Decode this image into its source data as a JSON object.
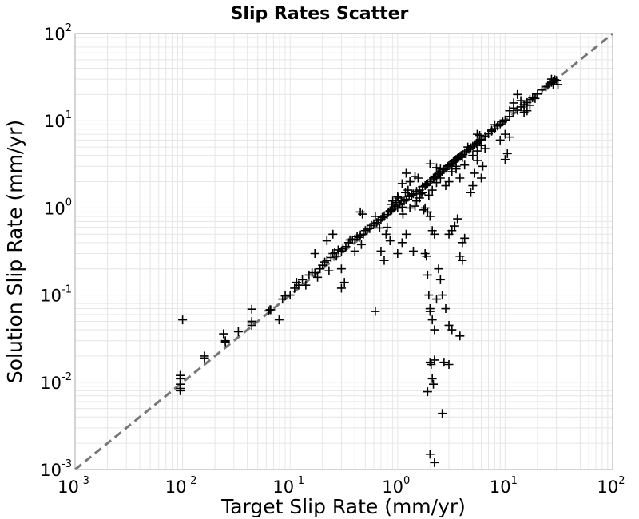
{
  "chart_data": {
    "type": "scatter",
    "title": "Slip Rates Scatter",
    "xlabel": "Target Slip Rate (mm/yr)",
    "ylabel": "Solution Slip Rate (mm/yr)",
    "xscale": "log",
    "yscale": "log",
    "xlim": [
      0.001,
      100
    ],
    "ylim": [
      0.001,
      100
    ],
    "grid": true,
    "legend": "none",
    "marker": "plus",
    "reference_line": {
      "style": "dashed",
      "color": "#777777",
      "from": [
        0.001,
        0.001
      ],
      "to": [
        100,
        100
      ]
    },
    "tick_labels": {
      "x": [
        {
          "base": "10",
          "exp": "-3"
        },
        {
          "base": "10",
          "exp": "-2"
        },
        {
          "base": "10",
          "exp": "-1"
        },
        {
          "base": "10",
          "exp": "0"
        },
        {
          "base": "10",
          "exp": "1"
        },
        {
          "base": "10",
          "exp": "2"
        }
      ],
      "y": [
        {
          "base": "10",
          "exp": "-3"
        },
        {
          "base": "10",
          "exp": "-2"
        },
        {
          "base": "10",
          "exp": "-1"
        },
        {
          "base": "10",
          "exp": "0"
        },
        {
          "base": "10",
          "exp": "1"
        },
        {
          "base": "10",
          "exp": "2"
        }
      ]
    },
    "colors": {
      "marker": "#000000",
      "grid": "#e6e6e6",
      "axis": "#aaaaaa",
      "reference": "#777777"
    },
    "points": [
      [
        0.0095,
        0.011
      ],
      [
        0.0095,
        0.0095
      ],
      [
        0.0095,
        0.0085
      ],
      [
        0.0095,
        0.008
      ],
      [
        0.0095,
        0.012
      ],
      [
        0.01,
        0.052
      ],
      [
        0.016,
        0.02
      ],
      [
        0.016,
        0.019
      ],
      [
        0.025,
        0.029
      ],
      [
        0.025,
        0.03
      ],
      [
        0.024,
        0.036
      ],
      [
        0.033,
        0.038
      ],
      [
        0.044,
        0.045
      ],
      [
        0.044,
        0.05
      ],
      [
        0.044,
        0.048
      ],
      [
        0.044,
        0.069
      ],
      [
        0.063,
        0.066
      ],
      [
        0.065,
        0.068
      ],
      [
        0.066,
        0.068
      ],
      [
        0.079,
        0.052
      ],
      [
        0.085,
        0.09
      ],
      [
        0.09,
        0.098
      ],
      [
        0.1,
        0.1
      ],
      [
        0.11,
        0.12
      ],
      [
        0.115,
        0.14
      ],
      [
        0.12,
        0.13
      ],
      [
        0.13,
        0.15
      ],
      [
        0.14,
        0.13
      ],
      [
        0.15,
        0.17
      ],
      [
        0.16,
        0.18
      ],
      [
        0.17,
        0.18
      ],
      [
        0.17,
        0.3
      ],
      [
        0.18,
        0.16
      ],
      [
        0.19,
        0.2
      ],
      [
        0.2,
        0.22
      ],
      [
        0.21,
        0.24
      ],
      [
        0.22,
        0.25
      ],
      [
        0.23,
        0.19
      ],
      [
        0.24,
        0.27
      ],
      [
        0.25,
        0.3
      ],
      [
        0.26,
        0.31
      ],
      [
        0.27,
        0.28
      ],
      [
        0.28,
        0.33
      ],
      [
        0.3,
        0.32
      ],
      [
        0.31,
        0.34
      ],
      [
        0.33,
        0.36
      ],
      [
        0.35,
        0.4
      ],
      [
        0.36,
        0.43
      ],
      [
        0.38,
        0.43
      ],
      [
        0.4,
        0.44
      ],
      [
        0.42,
        0.47
      ],
      [
        0.44,
        0.46
      ],
      [
        0.45,
        0.49
      ],
      [
        0.46,
        0.38
      ],
      [
        0.48,
        0.5
      ],
      [
        0.5,
        0.55
      ],
      [
        0.52,
        0.57
      ],
      [
        0.55,
        0.58
      ],
      [
        0.57,
        0.63
      ],
      [
        0.6,
        0.66
      ],
      [
        0.62,
        0.8
      ],
      [
        0.64,
        0.68
      ],
      [
        0.66,
        0.72
      ],
      [
        0.68,
        0.59
      ],
      [
        0.7,
        0.74
      ],
      [
        0.72,
        0.78
      ],
      [
        0.75,
        0.8
      ],
      [
        0.78,
        0.5
      ],
      [
        0.8,
        0.84
      ],
      [
        0.82,
        0.9
      ],
      [
        0.85,
        0.93
      ],
      [
        0.88,
        0.95
      ],
      [
        0.9,
        0.99
      ],
      [
        0.93,
        1.0
      ],
      [
        0.95,
        1.05
      ],
      [
        0.97,
        1.15
      ],
      [
        1.0,
        1.0
      ],
      [
        1.02,
        1.3
      ],
      [
        1.05,
        1.1
      ],
      [
        1.08,
        1.2
      ],
      [
        1.1,
        1.02
      ],
      [
        1.12,
        0.85
      ],
      [
        1.15,
        1.2
      ],
      [
        1.18,
        1.5
      ],
      [
        1.2,
        1.25
      ],
      [
        1.25,
        1.6
      ],
      [
        1.28,
        1.35
      ],
      [
        1.3,
        1.0
      ],
      [
        1.35,
        1.4
      ],
      [
        1.4,
        1.45
      ],
      [
        1.45,
        1.05
      ],
      [
        1.5,
        1.55
      ],
      [
        1.55,
        2.2
      ],
      [
        1.6,
        1.6
      ],
      [
        1.65,
        1.45
      ],
      [
        1.7,
        1.75
      ],
      [
        1.75,
        0.95
      ],
      [
        1.8,
        1.8
      ],
      [
        1.85,
        1.85
      ],
      [
        1.9,
        1.9
      ],
      [
        1.95,
        1.4
      ],
      [
        2.0,
        2.0
      ],
      [
        2.05,
        2.1
      ],
      [
        2.1,
        1.6
      ],
      [
        2.15,
        2.2
      ],
      [
        2.2,
        2.25
      ],
      [
        2.25,
        2.3
      ],
      [
        2.3,
        1.95
      ],
      [
        2.35,
        2.4
      ],
      [
        2.4,
        2.45
      ],
      [
        2.45,
        2.5
      ],
      [
        2.5,
        2.2
      ],
      [
        2.6,
        2.6
      ],
      [
        2.7,
        2.75
      ],
      [
        2.8,
        2.85
      ],
      [
        2.9,
        3.0
      ],
      [
        3.0,
        3.05
      ],
      [
        3.1,
        3.1
      ],
      [
        3.2,
        3.25
      ],
      [
        3.3,
        3.4
      ],
      [
        3.4,
        3.5
      ],
      [
        3.5,
        3.6
      ],
      [
        3.6,
        3.7
      ],
      [
        3.7,
        3.8
      ],
      [
        3.8,
        3.9
      ],
      [
        3.9,
        4.0
      ],
      [
        4.0,
        4.1
      ],
      [
        4.2,
        4.3
      ],
      [
        4.4,
        4.5
      ],
      [
        4.6,
        4.7
      ],
      [
        4.8,
        4.9
      ],
      [
        5.0,
        5.1
      ],
      [
        5.2,
        5.3
      ],
      [
        5.4,
        5.5
      ],
      [
        5.6,
        5.7
      ],
      [
        5.8,
        5.9
      ],
      [
        6.0,
        6.1
      ],
      [
        6.5,
        6.6
      ],
      [
        7.0,
        7.1
      ],
      [
        7.5,
        7.6
      ],
      [
        8.0,
        8.1
      ],
      [
        8.5,
        8.7
      ],
      [
        9.0,
        9.2
      ],
      [
        9.5,
        9.7
      ],
      [
        10.0,
        10.2
      ],
      [
        11.0,
        11.2
      ],
      [
        12.0,
        12.3
      ],
      [
        13.0,
        13.2
      ],
      [
        14.0,
        14.4
      ],
      [
        15.0,
        15.3
      ],
      [
        16.0,
        16.2
      ],
      [
        17.0,
        17.5
      ],
      [
        18.0,
        18.3
      ],
      [
        20.0,
        20.2
      ],
      [
        22.0,
        22.5
      ],
      [
        24.0,
        24.5
      ],
      [
        25.0,
        25.5
      ],
      [
        26.0,
        26.5
      ],
      [
        27.0,
        27.5
      ],
      [
        28.0,
        28.5
      ],
      [
        29.0,
        29.5
      ],
      [
        30.0,
        29.0
      ],
      [
        31.0,
        26.0
      ],
      [
        28.0,
        26.0
      ],
      [
        27.0,
        30.0
      ],
      [
        1.5,
        1.2
      ],
      [
        1.6,
        1.3
      ],
      [
        1.7,
        1.5
      ],
      [
        1.8,
        1.0
      ],
      [
        1.9,
        0.9
      ],
      [
        2.0,
        0.8
      ],
      [
        2.1,
        0.55
      ],
      [
        2.2,
        0.5
      ],
      [
        1.8,
        0.3
      ],
      [
        1.85,
        0.28
      ],
      [
        1.9,
        0.17
      ],
      [
        1.95,
        0.1
      ],
      [
        2.0,
        0.07
      ],
      [
        2.0,
        0.065
      ],
      [
        2.1,
        0.052
      ],
      [
        2.2,
        0.04
      ],
      [
        2.3,
        0.09
      ],
      [
        2.4,
        0.2
      ],
      [
        2.5,
        0.15
      ],
      [
        2.6,
        0.1
      ],
      [
        2.8,
        0.07
      ],
      [
        3.0,
        0.045
      ],
      [
        3.2,
        0.04
      ],
      [
        3.8,
        0.034
      ],
      [
        3.0,
        0.5
      ],
      [
        3.2,
        0.55
      ],
      [
        3.4,
        0.62
      ],
      [
        3.6,
        0.75
      ],
      [
        3.8,
        0.28
      ],
      [
        4.0,
        0.25
      ],
      [
        4.0,
        0.4
      ],
      [
        4.2,
        0.45
      ],
      [
        2.0,
        0.017
      ],
      [
        2.05,
        0.016
      ],
      [
        2.1,
        0.011
      ],
      [
        2.15,
        0.0095
      ],
      [
        1.9,
        0.0078
      ],
      [
        2.2,
        0.018
      ],
      [
        2.7,
        0.017
      ],
      [
        3.0,
        0.016
      ],
      [
        2.6,
        0.0044
      ],
      [
        2.0,
        0.0015
      ],
      [
        2.2,
        0.0012
      ],
      [
        0.62,
        0.065
      ],
      [
        0.7,
        0.32
      ],
      [
        0.75,
        0.25
      ],
      [
        0.8,
        0.6
      ],
      [
        0.85,
        0.42
      ],
      [
        0.88,
        1.1
      ],
      [
        0.9,
        1.2
      ],
      [
        1.0,
        1.35
      ],
      [
        0.4,
        0.32
      ],
      [
        0.32,
        0.14
      ],
      [
        0.3,
        0.12
      ],
      [
        0.45,
        0.9
      ],
      [
        0.47,
        0.85
      ],
      [
        0.25,
        0.5
      ],
      [
        0.22,
        0.42
      ],
      [
        0.3,
        0.2
      ],
      [
        1.0,
        0.3
      ],
      [
        1.1,
        0.4
      ],
      [
        1.2,
        0.5
      ],
      [
        1.4,
        0.32
      ],
      [
        1.1,
        1.9
      ],
      [
        1.2,
        2.5
      ],
      [
        1.3,
        2.0
      ],
      [
        1.45,
        2.3
      ],
      [
        3.5,
        3.0
      ],
      [
        3.8,
        2.2
      ],
      [
        4.2,
        3.1
      ],
      [
        4.5,
        5.0
      ],
      [
        5.0,
        4.0
      ],
      [
        5.5,
        4.5
      ],
      [
        6.0,
        5.2
      ],
      [
        6.5,
        4.8
      ],
      [
        7.5,
        7.8
      ],
      [
        8.0,
        9.0
      ],
      [
        9.0,
        6.0
      ],
      [
        10.0,
        7.0
      ],
      [
        11.0,
        6.5
      ],
      [
        10.5,
        4.2
      ],
      [
        10.0,
        3.6
      ],
      [
        11.0,
        13.0
      ],
      [
        12.0,
        14.0
      ],
      [
        13.0,
        20.0
      ],
      [
        14.0,
        17.0
      ],
      [
        12.0,
        16.0
      ],
      [
        15.0,
        12.5
      ],
      [
        16.0,
        13.0
      ],
      [
        17.0,
        15.0
      ],
      [
        19.0,
        18.0
      ],
      [
        5.0,
        1.8
      ],
      [
        5.2,
        2.5
      ],
      [
        5.5,
        3.5
      ],
      [
        4.8,
        1.5
      ],
      [
        6.0,
        2.2
      ],
      [
        6.2,
        3.0
      ],
      [
        5.8,
        6.8
      ],
      [
        5.5,
        7.0
      ],
      [
        2.8,
        1.8
      ],
      [
        3.0,
        2.0
      ],
      [
        3.2,
        2.6
      ],
      [
        3.5,
        2.8
      ],
      [
        4.0,
        3.8
      ],
      [
        2.5,
        2.8
      ],
      [
        2.3,
        2.9
      ],
      [
        2.0,
        3.2
      ]
    ]
  }
}
